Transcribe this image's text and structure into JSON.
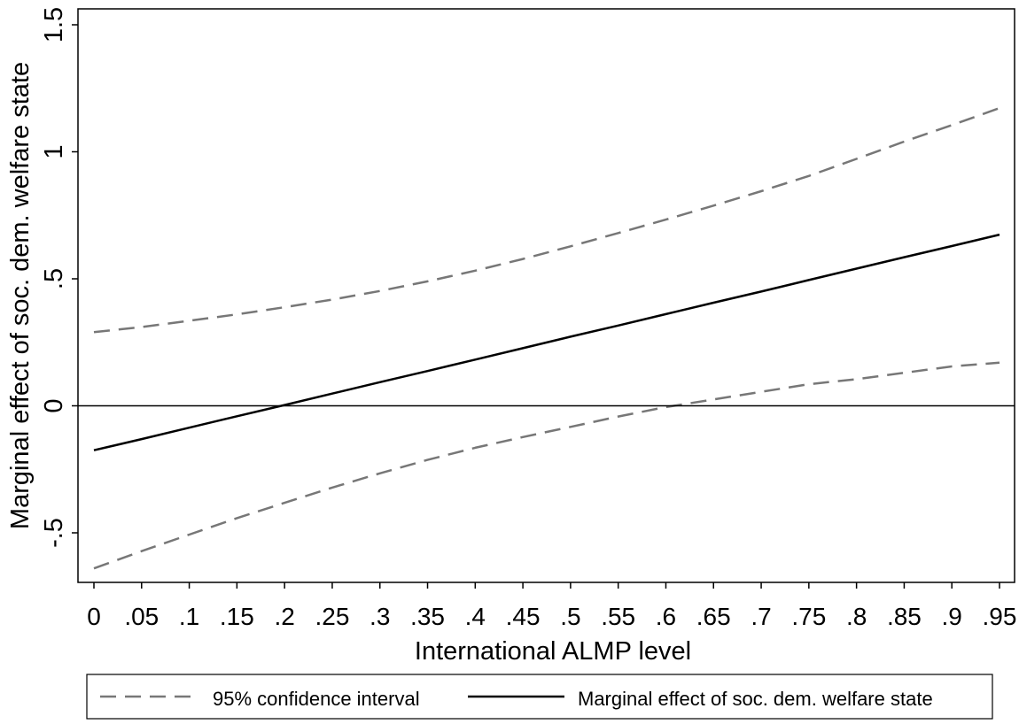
{
  "chart_data": {
    "type": "line",
    "title": "",
    "xlabel": "International ALMP level",
    "ylabel": "Marginal effect of soc. dem. welfare state",
    "xlim": [
      0,
      0.95
    ],
    "ylim": [
      -0.7,
      1.5
    ],
    "x_ticks": [
      0,
      0.05,
      0.1,
      0.15,
      0.2,
      0.25,
      0.3,
      0.35,
      0.4,
      0.45,
      0.5,
      0.55,
      0.6,
      0.65,
      0.7,
      0.75,
      0.8,
      0.85,
      0.9,
      0.95
    ],
    "x_tick_labels": [
      "0",
      ".05",
      ".1",
      ".15",
      ".2",
      ".25",
      ".3",
      ".35",
      ".4",
      ".45",
      ".5",
      ".55",
      ".6",
      ".65",
      ".7",
      ".75",
      ".8",
      ".85",
      ".9",
      ".95"
    ],
    "y_ticks": [
      -0.5,
      0,
      0.5,
      1,
      1.5
    ],
    "y_tick_labels": [
      "-.5",
      "0",
      ".5",
      "1",
      "1.5"
    ],
    "grid": false,
    "reference_line_y": 0,
    "legend_position": "bottom",
    "x": [
      0,
      0.05,
      0.1,
      0.15,
      0.2,
      0.25,
      0.3,
      0.35,
      0.4,
      0.45,
      0.5,
      0.55,
      0.6,
      0.65,
      0.7,
      0.75,
      0.8,
      0.85,
      0.9,
      0.95
    ],
    "series": [
      {
        "name": "Marginal effect of soc. dem. welfare state",
        "style": "solid",
        "color": "#000000",
        "values": [
          -0.175,
          -0.131,
          -0.086,
          -0.041,
          0.003,
          0.048,
          0.093,
          0.137,
          0.182,
          0.227,
          0.272,
          0.316,
          0.361,
          0.406,
          0.45,
          0.495,
          0.54,
          0.585,
          0.629,
          0.674
        ]
      },
      {
        "name": "95% confidence interval",
        "style": "dashed",
        "color": "#777777",
        "values": [
          0.29,
          0.31,
          0.335,
          0.36,
          0.388,
          0.418,
          0.452,
          0.49,
          0.532,
          0.578,
          0.628,
          0.68,
          0.733,
          0.788,
          0.845,
          0.905,
          0.972,
          1.04,
          1.105,
          1.172
        ]
      },
      {
        "name": "95% confidence interval",
        "style": "dashed",
        "color": "#777777",
        "values": [
          -0.64,
          -0.572,
          -0.507,
          -0.442,
          -0.382,
          -0.322,
          -0.266,
          -0.213,
          -0.165,
          -0.123,
          -0.083,
          -0.042,
          -0.005,
          0.025,
          0.055,
          0.085,
          0.105,
          0.13,
          0.155,
          0.17
        ]
      }
    ],
    "legend": [
      {
        "label": "95% confidence interval",
        "style": "dashed",
        "color": "#777777"
      },
      {
        "label": "Marginal effect of soc. dem. welfare state",
        "style": "solid",
        "color": "#000000"
      }
    ]
  }
}
